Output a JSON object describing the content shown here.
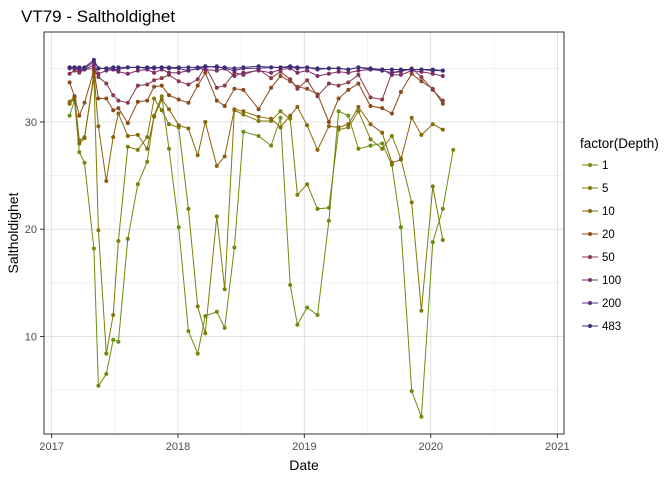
{
  "chart_data": {
    "type": "line",
    "title": "VT79  -  Saltholdighet",
    "xlabel": "Date",
    "ylabel": "Saltholdighet",
    "xlim": [
      "2016-12-10",
      "2021-01-20"
    ],
    "ylim": [
      0.9,
      38.4
    ],
    "x_ticks": [
      "2017-01-01",
      "2018-01-01",
      "2019-01-01",
      "2020-01-01",
      "2021-01-01"
    ],
    "x_tick_labels": [
      "2017",
      "2018",
      "2019",
      "2020",
      "2021"
    ],
    "y_ticks": [
      10,
      20,
      30
    ],
    "y_tick_labels": [
      "10",
      "20",
      "30"
    ],
    "grid": true,
    "legend": {
      "title": "factor(Depth)",
      "position": "right"
    },
    "dates": [
      "2017-02-22",
      "2017-03-08",
      "2017-03-22",
      "2017-04-06",
      "2017-05-03",
      "2017-05-16",
      "2017-06-08",
      "2017-06-28",
      "2017-07-13",
      "2017-08-09",
      "2017-09-07",
      "2017-10-04",
      "2017-10-24",
      "2017-11-15",
      "2017-12-06",
      "2018-01-03",
      "2018-01-31",
      "2018-02-27",
      "2018-03-21",
      "2018-04-23",
      "2018-05-16",
      "2018-06-13",
      "2018-07-09",
      "2018-08-22",
      "2018-09-27",
      "2018-10-24",
      "2018-11-21",
      "2018-12-12",
      "2019-01-09",
      "2019-02-08",
      "2019-03-13",
      "2019-04-10",
      "2019-05-08",
      "2019-06-06",
      "2019-07-11",
      "2019-08-14",
      "2019-09-11",
      "2019-10-07",
      "2019-11-07",
      "2019-12-05",
      "2020-01-07",
      "2020-02-05",
      "2020-03-06",
      "2020-04-06",
      "2020-05-07",
      "2020-06-03",
      "2020-07-06",
      "2020-08-05",
      "2020-09-09",
      "2020-10-08",
      "2020-11-10"
    ],
    "series": [
      {
        "name": "1",
        "color": "#6B8E10",
        "values": [
          30.6,
          32.0,
          27.2,
          26.2,
          18.2,
          5.4,
          6.5,
          9.7,
          9.5,
          19.1,
          24.2,
          26.3,
          30.6,
          32.4,
          27.5,
          20.2,
          10.5,
          8.4,
          11.9,
          12.3,
          10.8,
          18.3,
          29.1,
          28.7,
          27.8,
          30.4,
          14.8,
          11.1,
          12.7,
          12.0,
          20.8,
          31.0,
          30.6,
          27.5,
          27.8,
          28.0,
          26.0,
          20.2,
          4.9,
          2.5,
          18.8,
          21.9,
          27.4,
          null,
          null,
          null,
          null,
          null,
          null,
          null,
          null
        ]
      },
      {
        "name": "5",
        "color": "#7F7D06",
        "values": [
          31.9,
          32.4,
          28.3,
          28.6,
          34.2,
          19.9,
          8.4,
          12.0,
          18.9,
          27.7,
          27.4,
          28.6,
          32.2,
          31.1,
          29.8,
          29.5,
          21.9,
          12.8,
          10.3,
          21.2,
          14.4,
          31.1,
          30.7,
          30.1,
          30.1,
          31.0,
          30.3,
          23.2,
          24.2,
          21.9,
          22.0,
          29.3,
          29.5,
          31.0,
          28.4,
          27.5,
          28.7,
          26.6,
          22.5,
          12.4,
          24.0,
          19.0,
          null,
          null,
          null,
          null,
          null,
          null,
          null,
          null,
          null
        ]
      },
      {
        "name": "10",
        "color": "#8B6608",
        "values": [
          31.7,
          32.3,
          28.0,
          28.5,
          34.5,
          29.6,
          24.5,
          28.6,
          30.8,
          28.7,
          28.8,
          27.5,
          30.5,
          32.1,
          31.2,
          29.7,
          29.4,
          26.9,
          30.0,
          25.9,
          26.8,
          31.2,
          31.0,
          30.5,
          30.3,
          29.5,
          30.6,
          31.4,
          29.7,
          27.4,
          29.6,
          29.5,
          29.8,
          31.4,
          29.8,
          29.0,
          26.2,
          26.5,
          30.4,
          28.8,
          29.8,
          29.3,
          null,
          null,
          null,
          null,
          null,
          null,
          null,
          null,
          null
        ]
      },
      {
        "name": "20",
        "color": "#8E4A18",
        "values": [
          33.7,
          32.4,
          30.6,
          31.8,
          34.8,
          32.2,
          32.2,
          31.1,
          31.3,
          29.9,
          31.9,
          32.0,
          33.3,
          33.4,
          32.5,
          32.1,
          31.8,
          33.4,
          34.6,
          32.0,
          31.5,
          33.1,
          33.0,
          31.2,
          33.2,
          34.3,
          33.8,
          33.3,
          33.1,
          32.6,
          30.0,
          32.2,
          33.0,
          33.6,
          31.5,
          31.3,
          30.8,
          32.8,
          34.5,
          33.8,
          33.1,
          31.7,
          null,
          null,
          null,
          null,
          null,
          null,
          null,
          null,
          null
        ]
      },
      {
        "name": "50",
        "color": "#8A3A4A",
        "values": [
          34.5,
          34.8,
          34.6,
          34.9,
          35.0,
          34.2,
          33.6,
          32.5,
          32.0,
          31.8,
          33.4,
          33.5,
          33.9,
          34.1,
          34.4,
          33.8,
          33.5,
          34.0,
          35.2,
          33.2,
          33.4,
          34.6,
          34.4,
          34.9,
          34.1,
          34.7,
          34.0,
          33.1,
          33.9,
          32.4,
          33.6,
          33.4,
          33.7,
          34.4,
          32.3,
          32.1,
          34.6,
          34.7,
          35.0,
          34.2,
          33.0,
          32.0,
          null,
          null,
          null,
          null,
          null,
          null,
          null,
          null,
          null
        ]
      },
      {
        "name": "100",
        "color": "#7E2C6A",
        "values": [
          35.0,
          35.0,
          34.8,
          34.9,
          35.3,
          34.5,
          34.8,
          34.9,
          34.7,
          34.5,
          34.8,
          34.9,
          34.6,
          34.9,
          34.6,
          34.6,
          34.8,
          35.0,
          34.9,
          34.8,
          35.0,
          34.3,
          34.6,
          34.8,
          34.6,
          34.9,
          35.0,
          34.6,
          34.8,
          34.3,
          34.5,
          34.7,
          34.6,
          34.8,
          34.9,
          34.9,
          34.4,
          34.4,
          34.8,
          34.7,
          34.5,
          34.3,
          null,
          null,
          null,
          null,
          null,
          null,
          null,
          null,
          null
        ]
      },
      {
        "name": "200",
        "color": "#5F2A7E",
        "values": [
          35.1,
          35.1,
          34.9,
          35.0,
          35.6,
          35.0,
          35.0,
          34.9,
          34.9,
          35.1,
          35.1,
          35.0,
          35.0,
          35.1,
          35.0,
          35.0,
          34.8,
          35.0,
          35.1,
          35.2,
          35.0,
          34.8,
          35.0,
          35.0,
          35.1,
          35.1,
          35.1,
          35.0,
          35.1,
          34.9,
          35.0,
          35.0,
          34.9,
          35.1,
          34.9,
          34.8,
          34.6,
          34.8,
          34.9,
          34.9,
          34.8,
          34.8,
          null,
          null,
          null,
          null,
          null,
          null,
          null,
          null,
          null
        ]
      },
      {
        "name": "483",
        "color": "#3B2E78",
        "values": [
          35.1,
          35.1,
          35.1,
          35.1,
          35.8,
          35.0,
          35.0,
          35.1,
          35.1,
          35.1,
          35.1,
          35.1,
          35.1,
          35.1,
          35.1,
          35.1,
          35.1,
          35.1,
          35.2,
          35.1,
          35.1,
          35.0,
          35.1,
          35.2,
          35.1,
          35.1,
          35.2,
          35.1,
          35.1,
          35.0,
          35.0,
          35.0,
          34.9,
          35.1,
          35.0,
          34.9,
          34.9,
          34.9,
          34.9,
          34.9,
          34.9,
          34.8,
          null,
          null,
          null,
          null,
          null,
          null,
          null,
          null,
          null
        ]
      }
    ]
  }
}
